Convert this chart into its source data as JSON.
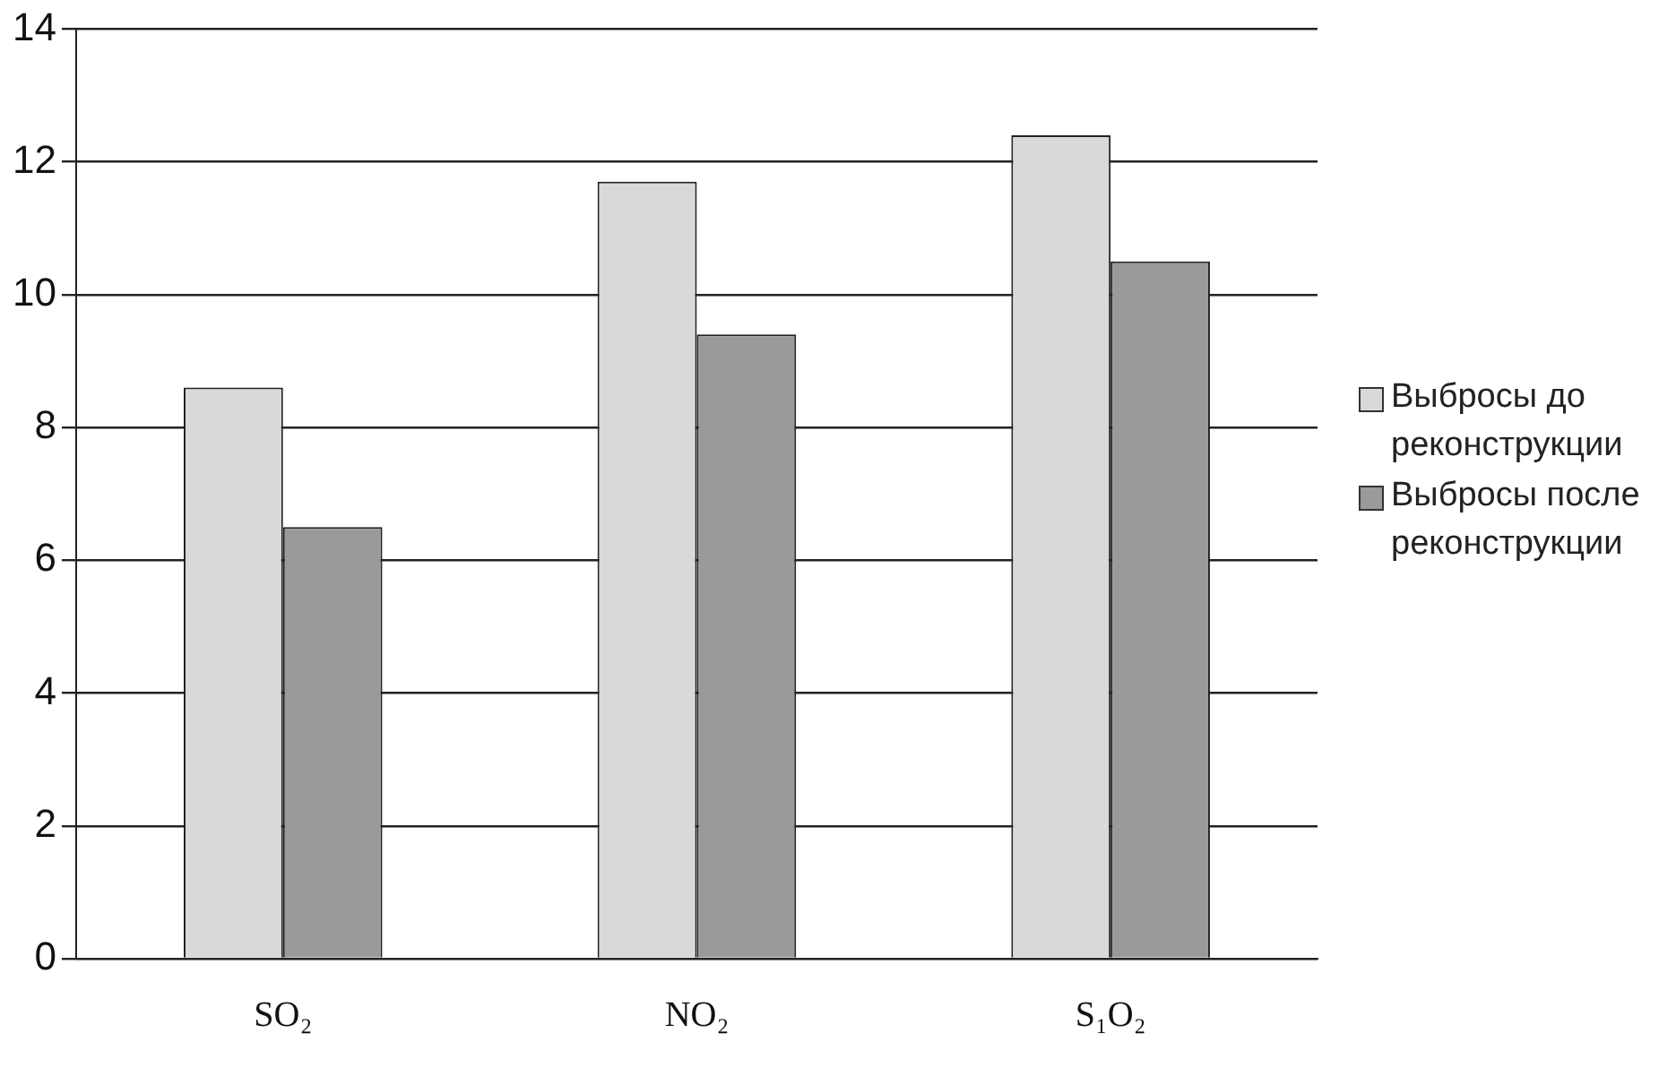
{
  "chart_data": {
    "type": "bar",
    "categories": [
      "SO₂",
      "NO₂",
      "S₁O₂"
    ],
    "series": [
      {
        "name": "Выбросы до реконструкции",
        "color": "#d9d9d9",
        "values": [
          8.6,
          11.7,
          12.4
        ]
      },
      {
        "name": "Выбросы после реконструкции",
        "color": "#9a9a9a",
        "values": [
          6.5,
          9.4,
          10.5
        ]
      }
    ],
    "ylim": [
      0,
      14
    ],
    "yticks": [
      0,
      2,
      4,
      6,
      8,
      10,
      12,
      14
    ],
    "grid": "y",
    "legend": "right"
  }
}
